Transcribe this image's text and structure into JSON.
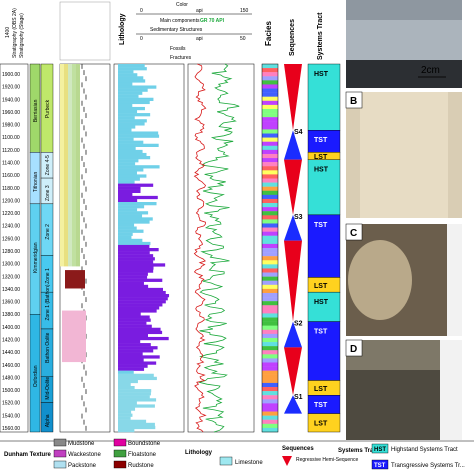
{
  "header": {
    "depth_label": "1400",
    "strat_label": "Stratigraphy (OBS 2A)",
    "stage_label": "Stratigraphy (Stage)",
    "dunham_rows": [
      "Color",
      "Main components",
      "Sedimentary Structures",
      "Fossils",
      "Fractures"
    ],
    "api_min": "0",
    "api_unit": "api",
    "api_max": "150",
    "gr_label": "GR 70 API",
    "api2_min": "0",
    "api2_max": "50",
    "lithology": "Lithology",
    "facies": "Facies",
    "sequences": "Sequences",
    "systems_tract": "Systems Tract"
  },
  "depths": [
    "1900.00",
    "1920.00",
    "1940.00",
    "1960.00",
    "1980.00",
    "1100.00",
    "1120.00",
    "1140.00",
    "1160.00",
    "1180.00",
    "1200.00",
    "1220.00",
    "1240.00",
    "1260.00",
    "1280.00",
    "1300.00",
    "1320.00",
    "1340.00",
    "1360.00",
    "1380.00",
    "1400.00",
    "1420.00",
    "1440.00",
    "1460.00",
    "1480.00",
    "1500.00",
    "1520.00",
    "1540.00",
    "1560.00"
  ],
  "stages": [
    "Berriasian",
    "Tithonian",
    "Kimmeridgian",
    "Oxfordian"
  ],
  "units": [
    "Purbeck",
    "Zone 4-5",
    "Zone 3",
    "Zone 2",
    "Zone 1",
    "Zone 1 (Bathon)",
    "Bathon Oolite",
    "Mid-Oolite",
    "Alpha"
  ],
  "sequence_labels": [
    "S4",
    "S3",
    "S2",
    "S1"
  ],
  "systems_tracts": [
    "HST",
    "TST",
    "LST",
    "HST",
    "TST",
    "LST",
    "HST",
    "TST",
    "LST",
    "TST",
    "LST"
  ],
  "photos": {
    "a_scale": "2cm",
    "panels": [
      "B",
      "C",
      "D"
    ]
  },
  "legend": {
    "dunham_title": "Dunham Texture",
    "dunham_items": [
      "Mudstone",
      "Wackestone",
      "Packstone",
      "Boundstone",
      "Floatstone",
      "Rudstone"
    ],
    "dunham_colors": [
      "#888888",
      "#c040c0",
      "#b0e0f0",
      "#e000a0",
      "#40a040",
      "#8b0000"
    ],
    "lithology_title": "Lithology",
    "lithology_items": [
      "Limestone"
    ],
    "sequences_title": "Sequences",
    "sequence_items": [
      "Regressive Hemi-Sequence"
    ],
    "systems_title": "Systems Tract",
    "systems_items": [
      {
        "code": "HST",
        "label": "Highstand Systems Tract"
      },
      {
        "code": "TST",
        "label": "Transgressive Systems Tr..."
      }
    ]
  },
  "colors": {
    "hst": "#35e0d7",
    "tst": "#1a1aff",
    "lst": "#ffd21f",
    "red": "#e8001b",
    "blue": "#1a2cff",
    "gr_green": "#1aa83a",
    "gr_red": "#d81a1a"
  }
}
